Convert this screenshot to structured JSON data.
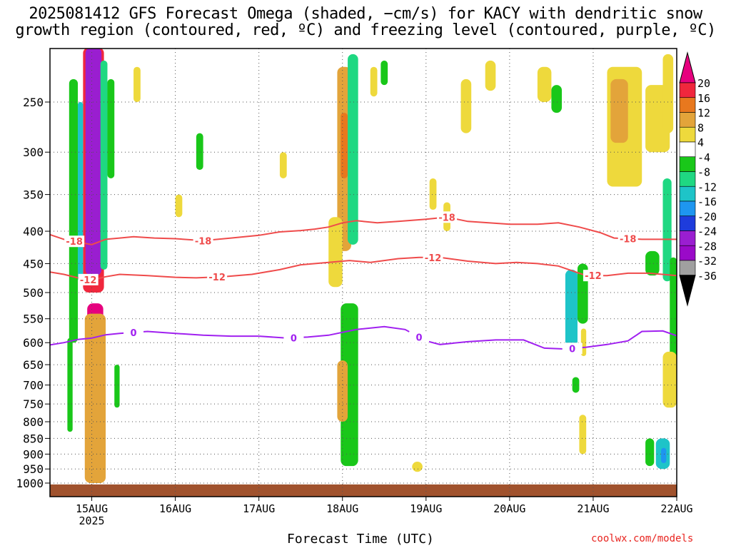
{
  "title": {
    "line1": "2025081412 GFS Forecast Omega (shaded, −cm/s) for KACY with dendritic snow",
    "line2": "growth region (contoured, red, ºC) and freezing level (contoured, purple, ºC)"
  },
  "xlabel": "Forecast Time (UTC)",
  "credit": "coolwx.com/models",
  "chart_data": {
    "type": "heatmap",
    "title": "2025081412 GFS Forecast Omega (shaded, −cm/s) for KACY with dendritic snow growth region (contoured, red, ºC) and freezing level (contoured, purple, ºC)",
    "xlabel": "Forecast Time (UTC)",
    "ylabel": "",
    "x_ticks": [
      "15AUG\n2025",
      "16AUG",
      "17AUG",
      "18AUG",
      "19AUG",
      "20AUG",
      "21AUG",
      "22AUG"
    ],
    "x_tick_hours": [
      12,
      36,
      60,
      84,
      108,
      132,
      156,
      180
    ],
    "xlim_hours": [
      0,
      180
    ],
    "y_ticks": [
      250,
      300,
      350,
      400,
      450,
      500,
      550,
      600,
      650,
      700,
      750,
      800,
      850,
      900,
      950,
      1000
    ],
    "ylim": [
      200,
      1010
    ],
    "y_scale": "log-pressure",
    "grid": true,
    "colorbar": {
      "labels": [
        20,
        16,
        12,
        8,
        4,
        -4,
        -8,
        -12,
        -16,
        -20,
        -24,
        -28,
        -32,
        -36
      ],
      "levels": [
        {
          "from": 20,
          "to": 24,
          "color": "#e6007e"
        },
        {
          "from": 16,
          "to": 20,
          "color": "#f0273d"
        },
        {
          "from": 12,
          "to": 16,
          "color": "#e8781e"
        },
        {
          "from": 8,
          "to": 12,
          "color": "#e3a43a"
        },
        {
          "from": 4,
          "to": 8,
          "color": "#eed93c"
        },
        {
          "from": -4,
          "to": 4,
          "color": "#ffffff"
        },
        {
          "from": -8,
          "to": -4,
          "color": "#19c719"
        },
        {
          "from": -12,
          "to": -8,
          "color": "#1fd882"
        },
        {
          "from": -16,
          "to": -12,
          "color": "#1ec4c8"
        },
        {
          "from": -20,
          "to": -16,
          "color": "#1e96f0"
        },
        {
          "from": -24,
          "to": -20,
          "color": "#1e3cdc"
        },
        {
          "from": -28,
          "to": -24,
          "color": "#9a1ed0"
        },
        {
          "from": -32,
          "to": -28,
          "color": "#9a0ac8"
        },
        {
          "from": -36,
          "to": -32,
          "color": "#a0a0a0"
        },
        {
          "from": -40,
          "to": -36,
          "color": "#000000"
        }
      ]
    },
    "omega_patches": [
      {
        "t": [
          9.5,
          15.5
        ],
        "p": [
          205,
          500
        ],
        "value": 18
      },
      {
        "t": [
          11.2,
          13.8
        ],
        "p": [
          205,
          470
        ],
        "value": -38
      },
      {
        "t": [
          10.2,
          14.8
        ],
        "p": [
          205,
          470
        ],
        "value": -26
      },
      {
        "t": [
          10.7,
          15.3
        ],
        "p": [
          520,
          980
        ],
        "value": 22
      },
      {
        "t": [
          10,
          16
        ],
        "p": [
          540,
          1000
        ],
        "value": 9
      },
      {
        "t": [
          5.5,
          8
        ],
        "p": [
          230,
          600
        ],
        "value": -6
      },
      {
        "t": [
          8,
          9.5
        ],
        "p": [
          250,
          480
        ],
        "value": -14
      },
      {
        "t": [
          14.5,
          16.5
        ],
        "p": [
          215,
          460
        ],
        "value": -10
      },
      {
        "t": [
          16.5,
          18.5
        ],
        "p": [
          230,
          330
        ],
        "value": -6
      },
      {
        "t": [
          5,
          6.5
        ],
        "p": [
          590,
          830
        ],
        "value": -6
      },
      {
        "t": [
          18.5,
          20
        ],
        "p": [
          650,
          760
        ],
        "value": -6
      },
      {
        "t": [
          82.5,
          86.5
        ],
        "p": [
          220,
          430
        ],
        "value": 10
      },
      {
        "t": [
          83.5,
          85.5
        ],
        "p": [
          260,
          330
        ],
        "value": 14
      },
      {
        "t": [
          85.5,
          88.5
        ],
        "p": [
          210,
          420
        ],
        "value": -12
      },
      {
        "t": [
          83.5,
          88.5
        ],
        "p": [
          520,
          940
        ],
        "value": -6
      },
      {
        "t": [
          82.5,
          85.5
        ],
        "p": [
          640,
          800
        ],
        "value": 8
      },
      {
        "t": [
          80,
          84
        ],
        "p": [
          380,
          490
        ],
        "value": 6
      },
      {
        "t": [
          160,
          170
        ],
        "p": [
          220,
          340
        ],
        "value": 6
      },
      {
        "t": [
          161,
          166
        ],
        "p": [
          230,
          290
        ],
        "value": 10
      },
      {
        "t": [
          171,
          178
        ],
        "p": [
          235,
          300
        ],
        "value": 6
      },
      {
        "t": [
          148,
          151.5
        ],
        "p": [
          460,
          610
        ],
        "value": -14
      },
      {
        "t": [
          151.5,
          154.5
        ],
        "p": [
          450,
          560
        ],
        "value": -8
      },
      {
        "t": [
          152.5,
          154
        ],
        "p": [
          570,
          630
        ],
        "value": 6
      },
      {
        "t": [
          174,
          178
        ],
        "p": [
          850,
          950
        ],
        "value": -14
      },
      {
        "t": [
          175.5,
          177
        ],
        "p": [
          880,
          930
        ],
        "value": -20
      },
      {
        "t": [
          176,
          178.5
        ],
        "p": [
          330,
          480
        ],
        "value": -10
      },
      {
        "t": [
          171,
          175
        ],
        "p": [
          430,
          470
        ],
        "value": -6
      },
      {
        "t": [
          171,
          173.5
        ],
        "p": [
          850,
          940
        ],
        "value": -8
      },
      {
        "t": [
          178,
          180
        ],
        "p": [
          440,
          740
        ],
        "value": -6
      },
      {
        "t": [
          176,
          180
        ],
        "p": [
          620,
          760
        ],
        "value": 6
      },
      {
        "t": [
          104,
          107
        ],
        "p": [
          925,
          960
        ],
        "value": 6
      },
      {
        "t": [
          140,
          144
        ],
        "p": [
          220,
          250
        ],
        "value": 6
      },
      {
        "t": [
          144,
          147
        ],
        "p": [
          235,
          260
        ],
        "value": -6
      },
      {
        "t": [
          109,
          111
        ],
        "p": [
          330,
          370
        ],
        "value": 6
      },
      {
        "t": [
          113,
          115
        ],
        "p": [
          360,
          400
        ],
        "value": 6
      },
      {
        "t": [
          118,
          121
        ],
        "p": [
          230,
          280
        ],
        "value": 6
      },
      {
        "t": [
          125,
          128
        ],
        "p": [
          215,
          240
        ],
        "value": 6
      },
      {
        "t": [
          95,
          97
        ],
        "p": [
          215,
          235
        ],
        "value": -6
      },
      {
        "t": [
          92,
          94
        ],
        "p": [
          220,
          245
        ],
        "value": 6
      },
      {
        "t": [
          66,
          68
        ],
        "p": [
          300,
          330
        ],
        "value": 6
      },
      {
        "t": [
          42,
          44
        ],
        "p": [
          280,
          320
        ],
        "value": -6
      },
      {
        "t": [
          36,
          38
        ],
        "p": [
          350,
          380
        ],
        "value": 6
      },
      {
        "t": [
          24,
          26
        ],
        "p": [
          220,
          250
        ],
        "value": 6
      },
      {
        "t": [
          150,
          152
        ],
        "p": [
          680,
          720
        ],
        "value": -6
      },
      {
        "t": [
          152,
          154
        ],
        "p": [
          780,
          900
        ],
        "value": 6
      },
      {
        "t": [
          176,
          179
        ],
        "p": [
          210,
          280
        ],
        "value": 6
      }
    ],
    "series": [
      {
        "name": "-18",
        "color": "#ef4b4b",
        "label_at_hours": [
          7,
          44,
          114,
          166
        ],
        "t": [
          0,
          4,
          8,
          12,
          16,
          20,
          24,
          30,
          36,
          44,
          52,
          60,
          66,
          72,
          76,
          80,
          84,
          88,
          94,
          100,
          108,
          114,
          120,
          126,
          132,
          140,
          146,
          152,
          158,
          162,
          170,
          180
        ],
        "p": [
          405,
          412,
          416,
          420,
          412,
          410,
          408,
          410,
          411,
          414,
          410,
          406,
          401,
          399,
          397,
          394,
          388,
          385,
          388,
          386,
          383,
          380,
          386,
          388,
          390,
          390,
          388,
          394,
          402,
          410,
          412,
          412
        ]
      },
      {
        "name": "-12",
        "color": "#ef4b4b",
        "label_at_hours": [
          11,
          48,
          110,
          156
        ],
        "t": [
          0,
          4,
          8,
          12,
          16,
          20,
          28,
          36,
          42,
          50,
          58,
          66,
          72,
          80,
          86,
          92,
          100,
          106,
          112,
          120,
          128,
          134,
          140,
          146,
          150,
          154,
          160,
          166,
          172,
          180
        ],
        "p": [
          464,
          468,
          474,
          478,
          472,
          468,
          470,
          473,
          474,
          472,
          468,
          460,
          452,
          448,
          445,
          448,
          442,
          440,
          440,
          446,
          450,
          448,
          450,
          454,
          462,
          470,
          470,
          466,
          466,
          470
        ]
      },
      {
        "name": "0",
        "color": "#a020f0",
        "label_at_hours": [
          24,
          70,
          106,
          150
        ],
        "t": [
          0,
          4,
          8,
          12,
          16,
          20,
          28,
          36,
          44,
          52,
          60,
          68,
          74,
          80,
          88,
          96,
          102,
          108,
          112,
          120,
          128,
          136,
          142,
          148,
          154,
          160,
          166,
          170,
          176,
          180
        ],
        "p": [
          605,
          600,
          593,
          590,
          583,
          580,
          576,
          580,
          584,
          586,
          586,
          590,
          588,
          584,
          572,
          566,
          572,
          596,
          604,
          598,
          594,
          594,
          612,
          614,
          610,
          604,
          596,
          576,
          575,
          585
        ]
      }
    ]
  }
}
